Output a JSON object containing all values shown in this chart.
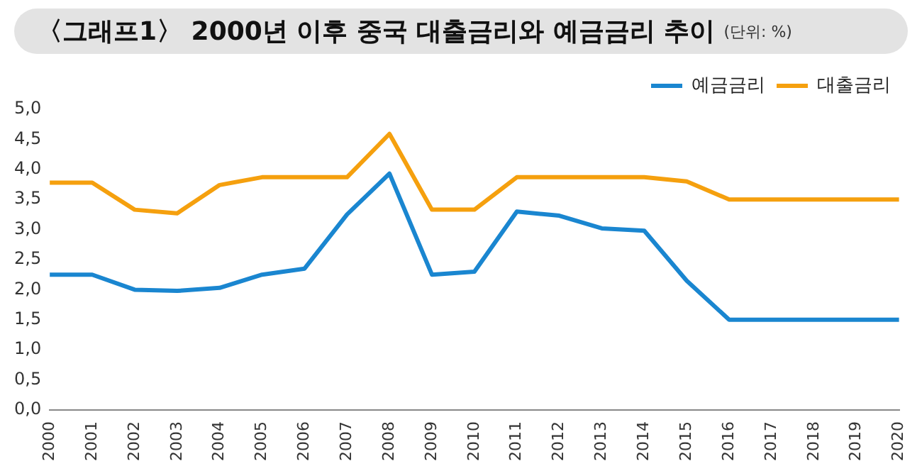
{
  "chart_data": {
    "type": "line",
    "title": "〈그래프1〉 2000년 이후 중국 대출금리와 예금금리 추이",
    "subtitle": "(단위: %)",
    "categories": [
      "2000",
      "2001",
      "2002",
      "2003",
      "2004",
      "2005",
      "2006",
      "2007",
      "2008",
      "2009",
      "2010",
      "2011",
      "2012",
      "2013",
      "2014",
      "2015",
      "2016",
      "2017",
      "2018",
      "2019",
      "2020"
    ],
    "series": [
      {
        "name": "예금금리",
        "color": "#1a86d0",
        "values": [
          2.25,
          2.25,
          2.0,
          1.98,
          2.03,
          2.25,
          2.35,
          3.25,
          3.93,
          2.25,
          2.3,
          3.3,
          3.23,
          3.02,
          2.98,
          2.15,
          1.5,
          1.5,
          1.5,
          1.5,
          1.5
        ]
      },
      {
        "name": "대출금리",
        "color": "#f5a00e",
        "values": [
          3.78,
          3.78,
          3.33,
          3.27,
          3.74,
          3.87,
          3.87,
          3.87,
          4.59,
          3.33,
          3.33,
          3.87,
          3.87,
          3.87,
          3.87,
          3.8,
          3.5,
          3.5,
          3.5,
          3.5,
          3.5
        ]
      }
    ],
    "ylim": [
      0,
      5
    ],
    "yticks": [
      {
        "value": 0,
        "label": "0,0"
      },
      {
        "value": 0.5,
        "label": "0,5"
      },
      {
        "value": 1,
        "label": "1,0"
      },
      {
        "value": 1.5,
        "label": "1,5"
      },
      {
        "value": 2,
        "label": "2,0"
      },
      {
        "value": 2.5,
        "label": "2,5"
      },
      {
        "value": 3,
        "label": "3,0"
      },
      {
        "value": 3.5,
        "label": "3,5"
      },
      {
        "value": 4,
        "label": "4,0"
      },
      {
        "value": 4.5,
        "label": "4,5"
      },
      {
        "value": 5,
        "label": "5,0"
      }
    ],
    "grid": false,
    "legend": "top right",
    "marker": "none",
    "line_style": "solid"
  }
}
